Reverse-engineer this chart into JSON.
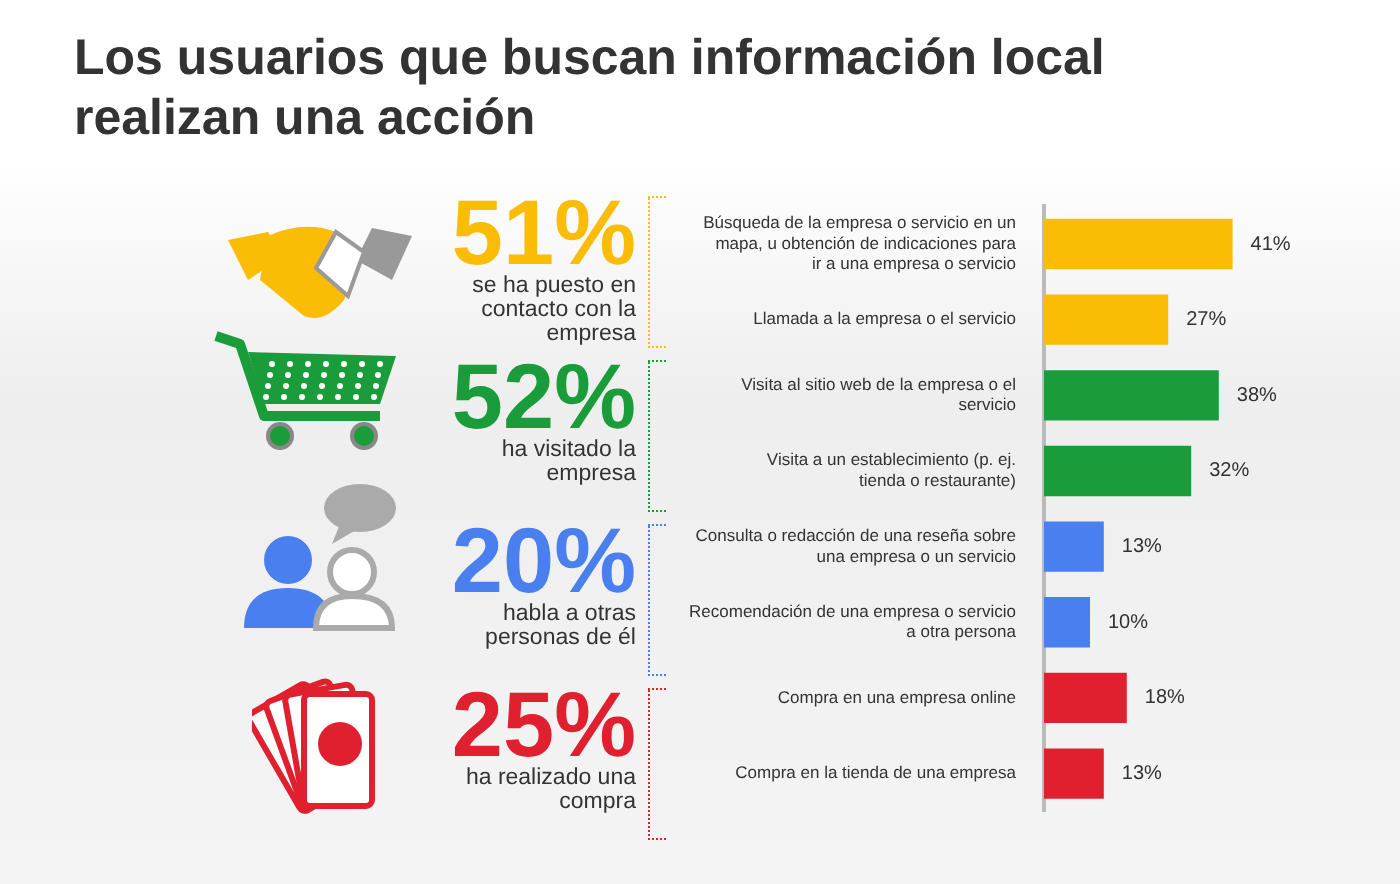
{
  "chart_data": {
    "type": "bar",
    "orientation": "horizontal",
    "title": "Los usuarios que buscan información local realizan una acción",
    "categories": [
      "Búsqueda de la empresa o servicio en un mapa, u obtención de indicaciones para ir a una empresa o servicio",
      "Llamada a la empresa o el servicio",
      "Visita al sitio web de la empresa o el servicio",
      "Visita a un establecimiento (p. ej. tienda o restaurante)",
      "Consulta o redacción de una reseña sobre una empresa o un servicio",
      "Recomendación de una empresa o servicio a otra persona",
      "Compra en una empresa online",
      "Compra en la tienda de una empresa"
    ],
    "values": [
      41,
      27,
      38,
      32,
      13,
      10,
      18,
      13
    ],
    "colors": [
      "#fbbc05",
      "#fbbc05",
      "#1a9c3a",
      "#1a9c3a",
      "#4a7ff0",
      "#4a7ff0",
      "#e0202e",
      "#e0202e"
    ],
    "value_labels": [
      "41%",
      "27%",
      "38%",
      "32%",
      "13%",
      "10%",
      "18%",
      "13%"
    ],
    "annotations": [
      "51%",
      "se ha puesto en contacto con la empresa",
      "52%",
      "ha visitado la empresa",
      "20%",
      "habla a otras personas de él",
      "25%",
      "ha realizado una compra"
    ],
    "legend": false
  }
}
